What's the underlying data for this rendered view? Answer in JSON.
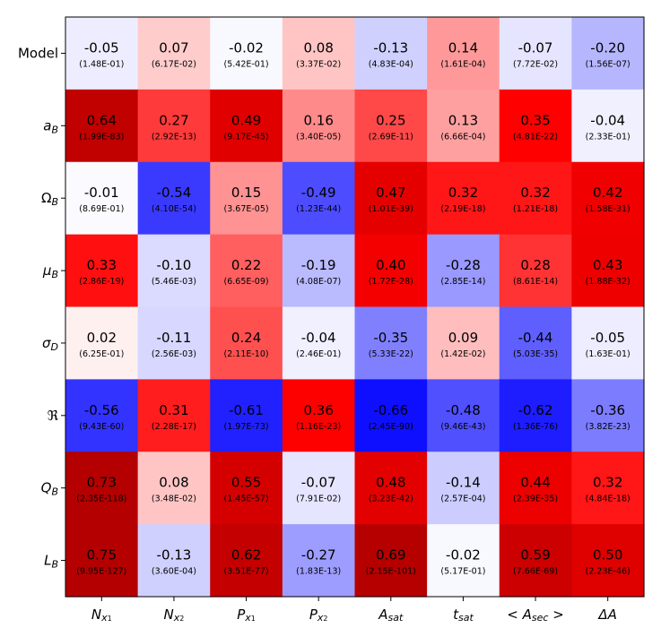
{
  "chart_data": {
    "type": "heatmap",
    "title": "",
    "xlabel": "",
    "ylabel": "",
    "colormap": "bwr",
    "color_range": [
      -0.7,
      0.7
    ],
    "colors": {
      "negative": "#0000ff",
      "neutral": "#ffffff",
      "positive": "#ff0000",
      "dark_positive": "#b40000"
    },
    "x_labels": [
      {
        "base": "N",
        "sub": "x",
        "subsub": "1"
      },
      {
        "base": "N",
        "sub": "x",
        "subsub": "2"
      },
      {
        "base": "P",
        "sub": "x",
        "subsub": "1"
      },
      {
        "base": "P",
        "sub": "x",
        "subsub": "2"
      },
      {
        "base": "A",
        "sub": "sat",
        "subsub": ""
      },
      {
        "base": "t",
        "sub": "sat",
        "subsub": ""
      },
      {
        "base": "< A",
        "sub": "sec",
        "subsub": "",
        "suffix": " >"
      },
      {
        "base": "ΔA",
        "sub": "",
        "subsub": ""
      }
    ],
    "y_labels": [
      {
        "base": "Model",
        "sub": "",
        "italic": false
      },
      {
        "base": "a",
        "sub": "B",
        "italic": true
      },
      {
        "base": "Ω",
        "sub": "B",
        "italic": false
      },
      {
        "base": "μ",
        "sub": "B",
        "italic": true
      },
      {
        "base": "σ",
        "sub": "D",
        "italic": true
      },
      {
        "base": "ℜ",
        "sub": "",
        "italic": false
      },
      {
        "base": "Q",
        "sub": "B",
        "italic": true
      },
      {
        "base": "L",
        "sub": "B",
        "italic": true
      }
    ],
    "values": [
      [
        -0.05,
        0.07,
        -0.02,
        0.08,
        -0.13,
        0.14,
        -0.07,
        -0.2
      ],
      [
        0.64,
        0.27,
        0.49,
        0.16,
        0.25,
        0.13,
        0.35,
        -0.04
      ],
      [
        -0.01,
        -0.54,
        0.15,
        -0.49,
        0.47,
        0.32,
        0.32,
        0.42
      ],
      [
        0.33,
        -0.1,
        0.22,
        -0.19,
        0.4,
        -0.28,
        0.28,
        0.43
      ],
      [
        0.02,
        -0.11,
        0.24,
        -0.04,
        -0.35,
        0.09,
        -0.44,
        -0.05
      ],
      [
        -0.56,
        0.31,
        -0.61,
        0.36,
        -0.66,
        -0.48,
        -0.62,
        -0.36
      ],
      [
        0.73,
        0.08,
        0.55,
        -0.07,
        0.48,
        -0.14,
        0.44,
        0.32
      ],
      [
        0.75,
        -0.13,
        0.62,
        -0.27,
        0.69,
        -0.02,
        0.59,
        0.5
      ]
    ],
    "value_labels": [
      [
        "-0.05",
        "0.07",
        "-0.02",
        "0.08",
        "-0.13",
        "0.14",
        "-0.07",
        "-0.20"
      ],
      [
        "0.64",
        "0.27",
        "0.49",
        "0.16",
        "0.25",
        "0.13",
        "0.35",
        "-0.04"
      ],
      [
        "-0.01",
        "-0.54",
        "0.15",
        "-0.49",
        "0.47",
        "0.32",
        "0.32",
        "0.42"
      ],
      [
        "0.33",
        "-0.10",
        "0.22",
        "-0.19",
        "0.40",
        "-0.28",
        "0.28",
        "0.43"
      ],
      [
        "0.02",
        "-0.11",
        "0.24",
        "-0.04",
        "-0.35",
        "0.09",
        "-0.44",
        "-0.05"
      ],
      [
        "-0.56",
        "0.31",
        "-0.61",
        "0.36",
        "-0.66",
        "-0.48",
        "-0.62",
        "-0.36"
      ],
      [
        "0.73",
        "0.08",
        "0.55",
        "-0.07",
        "0.48",
        "-0.14",
        "0.44",
        "0.32"
      ],
      [
        "0.75",
        "-0.13",
        "0.62",
        "-0.27",
        "0.69",
        "-0.02",
        "0.59",
        "0.50"
      ]
    ],
    "p_values": [
      [
        "(1.48E-01)",
        "(6.17E-02)",
        "(5.42E-01)",
        "(3.37E-02)",
        "(4.83E-04)",
        "(1.61E-04)",
        "(7.72E-02)",
        "(1.56E-07)"
      ],
      [
        "(1.99E-83)",
        "(2.92E-13)",
        "(9.17E-45)",
        "(3.40E-05)",
        "(2.69E-11)",
        "(6.66E-04)",
        "(4.81E-22)",
        "(2.33E-01)"
      ],
      [
        "(8.69E-01)",
        "(4.10E-54)",
        "(3.67E-05)",
        "(1.23E-44)",
        "(1.01E-39)",
        "(2.19E-18)",
        "(1.21E-18)",
        "(1.58E-31)"
      ],
      [
        "(2.86E-19)",
        "(5.46E-03)",
        "(6.65E-09)",
        "(4.08E-07)",
        "(1.72E-28)",
        "(2.85E-14)",
        "(8.61E-14)",
        "(1.88E-32)"
      ],
      [
        "(6.25E-01)",
        "(2.56E-03)",
        "(2.11E-10)",
        "(2.46E-01)",
        "(5.33E-22)",
        "(1.42E-02)",
        "(5.03E-35)",
        "(1.63E-01)"
      ],
      [
        "(9.43E-60)",
        "(2.28E-17)",
        "(1.97E-73)",
        "(1.16E-23)",
        "(2.45E-90)",
        "(9.46E-43)",
        "(1.36E-76)",
        "(3.82E-23)"
      ],
      [
        "(2.35E-118)",
        "(3.48E-02)",
        "(1.45E-57)",
        "(7.91E-02)",
        "(3.23E-42)",
        "(2.57E-04)",
        "(2.39E-35)",
        "(4.84E-18)"
      ],
      [
        "(9.95E-127)",
        "(3.60E-04)",
        "(3.51E-77)",
        "(1.83E-13)",
        "(2.15E-101)",
        "(5.17E-01)",
        "(7.66E-69)",
        "(2.23E-46)"
      ]
    ]
  }
}
